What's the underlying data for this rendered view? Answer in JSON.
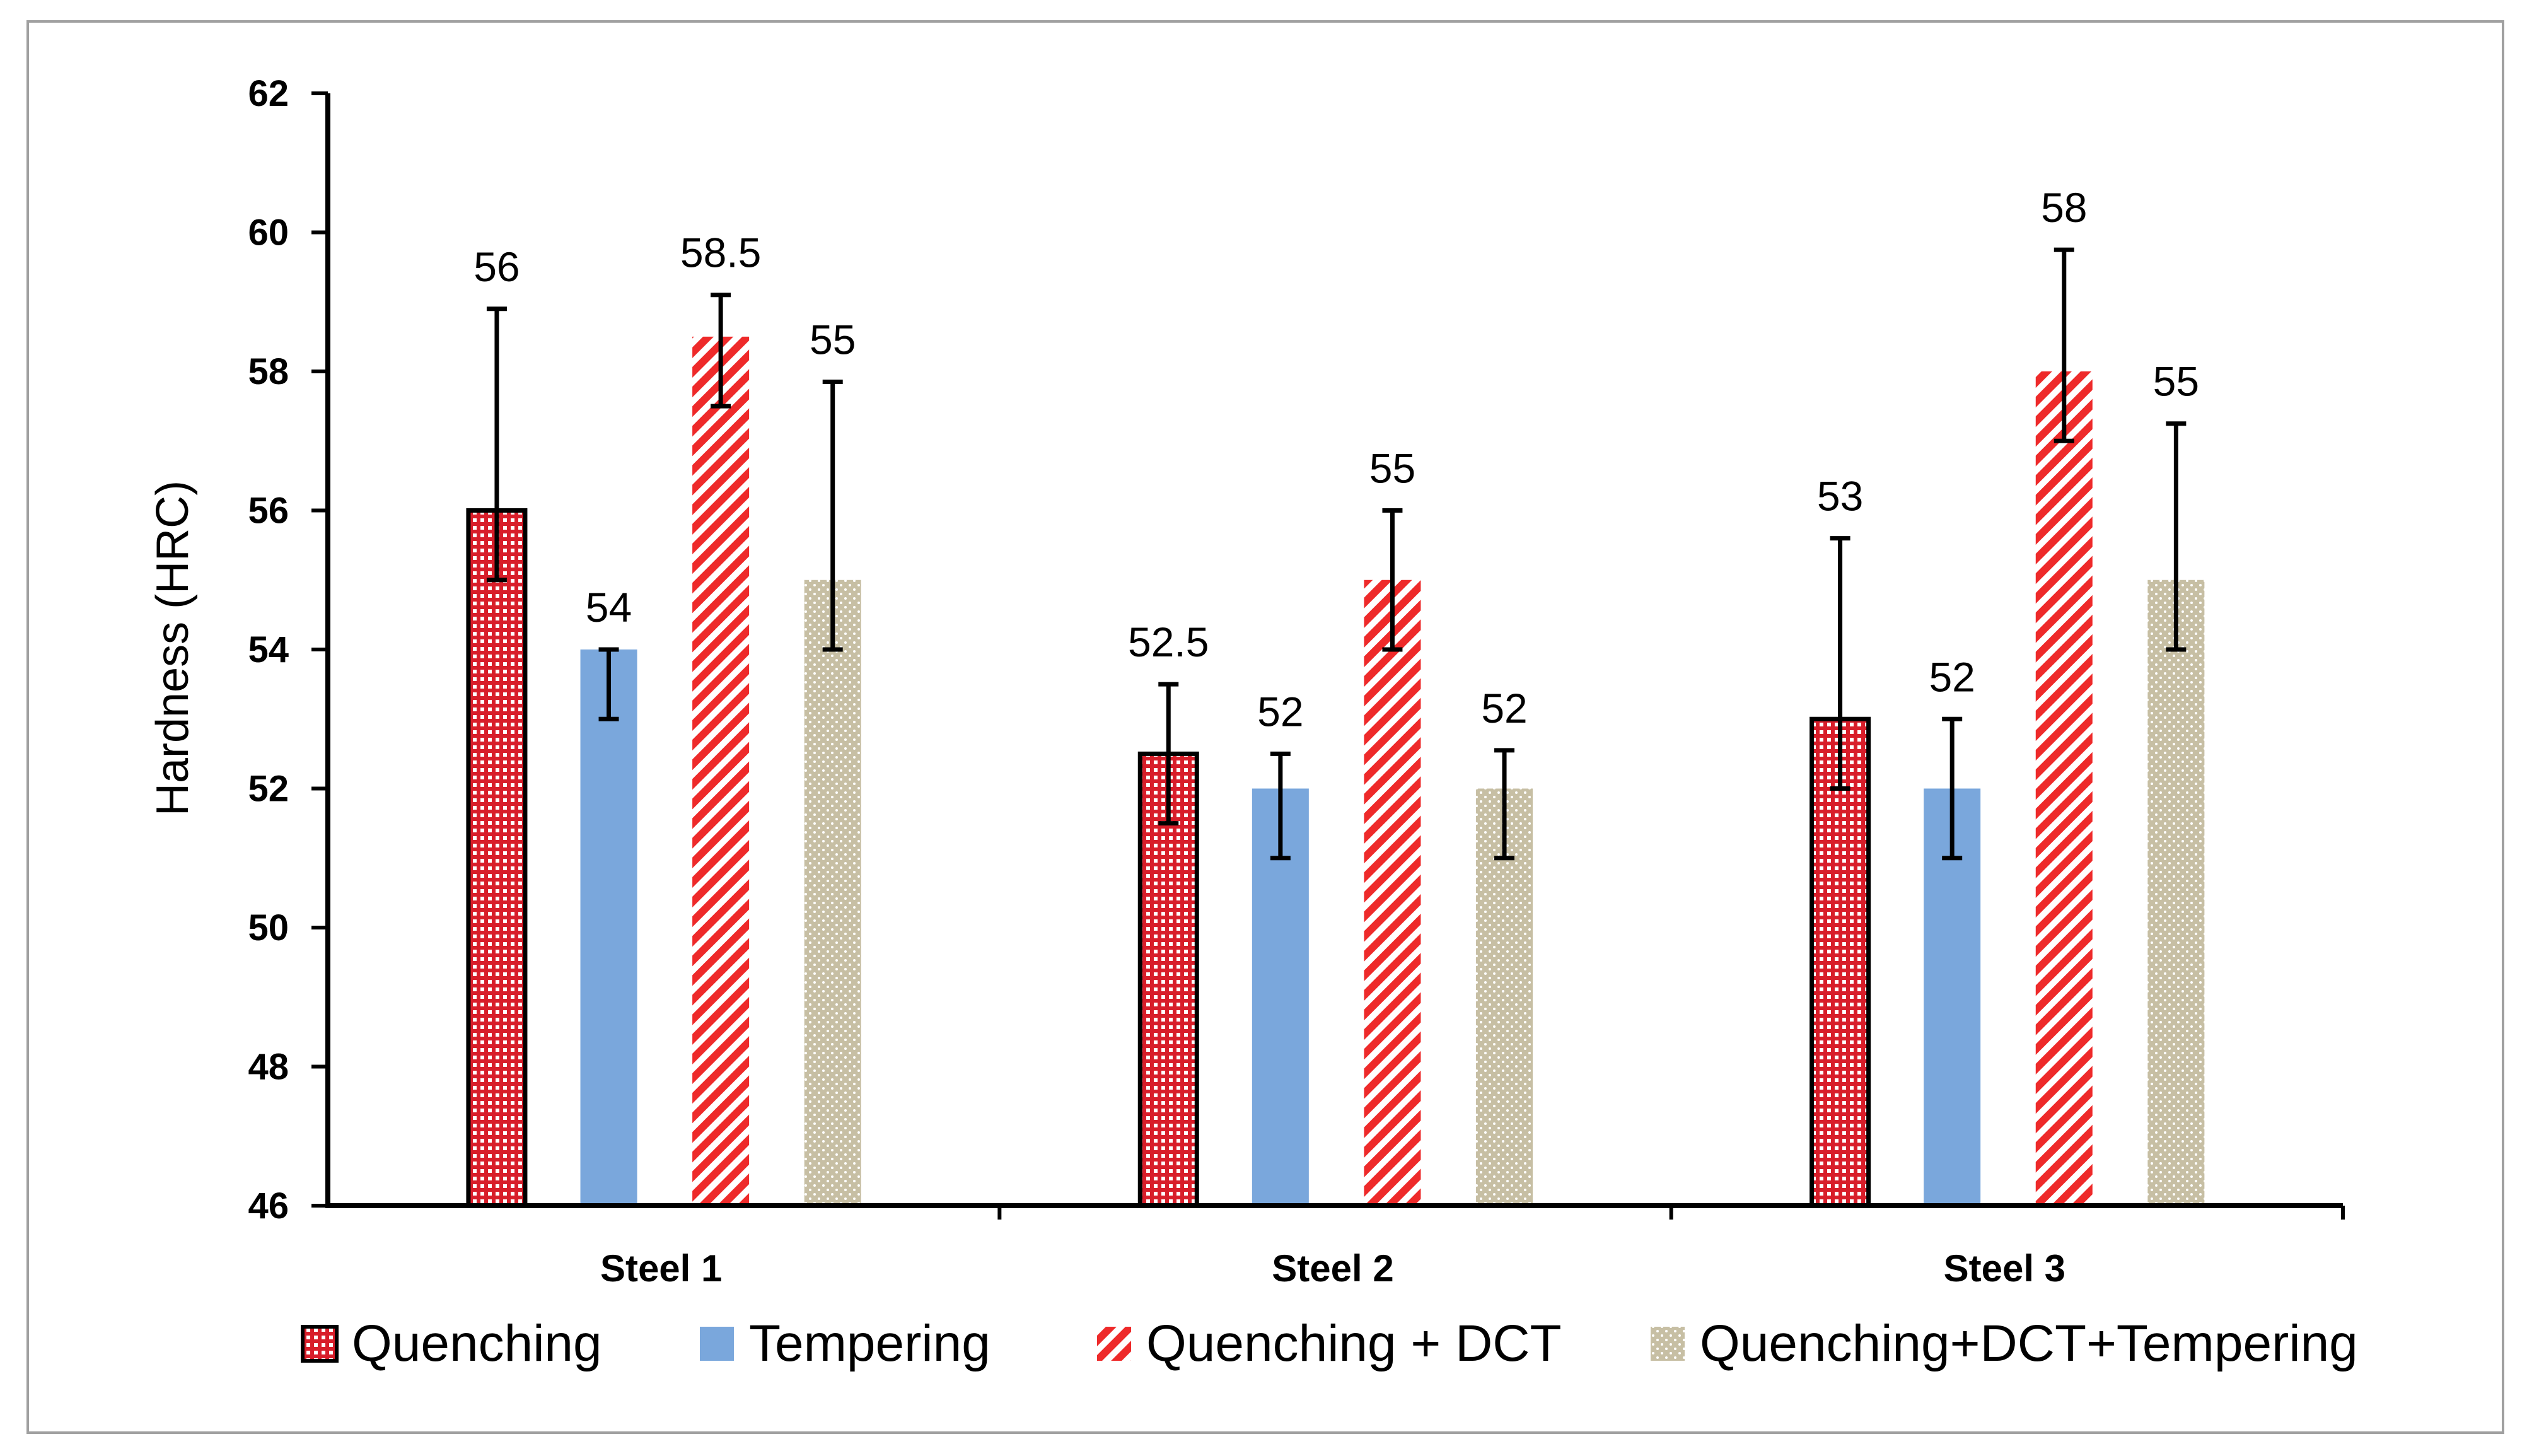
{
  "chart_data": {
    "type": "bar",
    "title": "",
    "xlabel": "",
    "ylabel": "Hardness (HRC)",
    "ylim": [
      46,
      62
    ],
    "yticks": [
      "46",
      "48",
      "50",
      "52",
      "54",
      "56",
      "58",
      "60",
      "62"
    ],
    "categories": [
      "Steel 1",
      "Steel 2",
      "Steel 3"
    ],
    "grid": false,
    "legend_position": "bottom",
    "series": [
      {
        "name": "Quenching",
        "pattern": "crosshatch",
        "color": "#d81e2a",
        "values": [
          56,
          52.5,
          53
        ],
        "labels": [
          "56",
          "52.5",
          "53"
        ],
        "err_low": [
          55,
          51.5,
          52
        ],
        "err_high": [
          58.9,
          53.5,
          55.6
        ]
      },
      {
        "name": "Tempering",
        "pattern": "solid",
        "color": "#7aa7dc",
        "values": [
          54,
          52,
          52
        ],
        "labels": [
          "54",
          "52",
          "52"
        ],
        "err_low": [
          53,
          51,
          51
        ],
        "err_high": [
          54,
          52.5,
          53
        ]
      },
      {
        "name": "Quenching + DCT",
        "pattern": "diagonal",
        "color": "#ee2a2a",
        "values": [
          58.5,
          55,
          58
        ],
        "labels": [
          "58.5",
          "55",
          "58"
        ],
        "err_low": [
          57.5,
          54,
          57
        ],
        "err_high": [
          59.1,
          56,
          59.75
        ]
      },
      {
        "name": "Quenching+DCT+Tempering",
        "pattern": "dotted",
        "color": "#c7bfa4",
        "values": [
          55,
          52,
          55
        ],
        "labels": [
          "55",
          "52",
          "55"
        ],
        "err_low": [
          54,
          51,
          54
        ],
        "err_high": [
          57.85,
          52.55,
          57.25
        ]
      }
    ]
  }
}
